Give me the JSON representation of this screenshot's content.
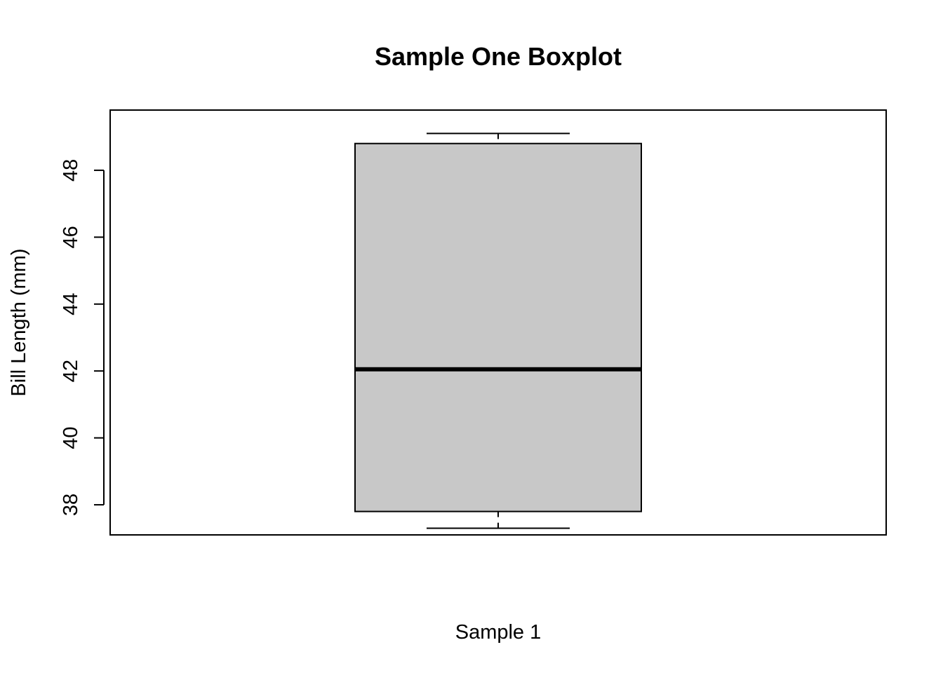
{
  "chart_data": {
    "type": "boxplot",
    "title": "Sample One Boxplot",
    "xlabel": "Sample 1",
    "ylabel": "Bill Length (mm)",
    "ylim": [
      37.1,
      49.8
    ],
    "yticks": [
      38,
      40,
      42,
      44,
      46,
      48
    ],
    "grid": false,
    "box": {
      "min": 37.3,
      "q1": 37.8,
      "median": 42.05,
      "q3": 48.8,
      "max": 49.1
    },
    "colors": {
      "box_fill": "#c8c8c8",
      "stroke": "#000000"
    }
  }
}
